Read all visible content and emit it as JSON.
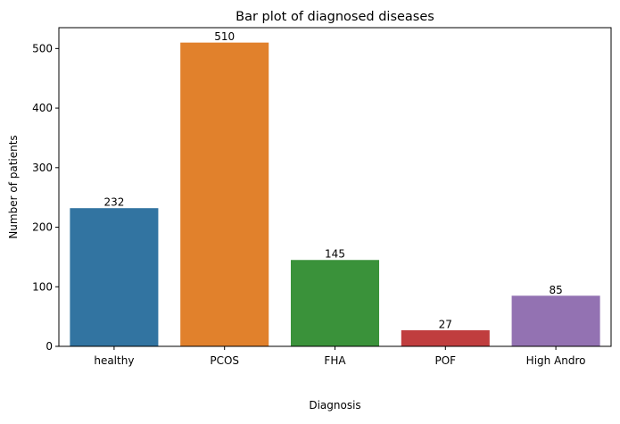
{
  "chart_data": {
    "type": "bar",
    "title": "Bar plot of diagnosed diseases",
    "xlabel": "Diagnosis",
    "ylabel": "Number of patients",
    "categories": [
      "healthy",
      "PCOS",
      "FHA",
      "POF",
      "High Andro"
    ],
    "values": [
      232,
      510,
      145,
      27,
      85
    ],
    "data_labels": [
      "232",
      "510",
      "145",
      "27",
      "85"
    ],
    "colors": [
      "#3274a1",
      "#e1812c",
      "#3a923a",
      "#c03d3e",
      "#9372b2"
    ],
    "ylim": [
      0,
      535
    ],
    "yticks": [
      0,
      100,
      200,
      300,
      400,
      500
    ],
    "ytick_labels": [
      "0",
      "100",
      "200",
      "300",
      "400",
      "500"
    ],
    "grid": false,
    "legend": "none"
  }
}
